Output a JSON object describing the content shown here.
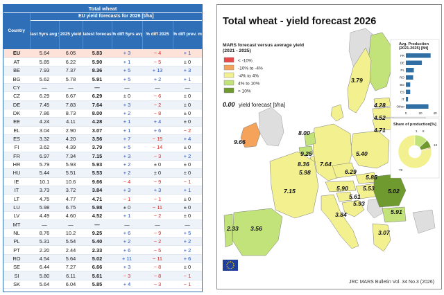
{
  "table": {
    "title": "Total wheat",
    "subtitle": "EU yield forecasts for 2026 [t/ha]",
    "columns": [
      "Country",
      "last 5yrs avg yield",
      "2025 yield",
      "latest forecast",
      "% diff 5yrs avg",
      "% diff 2025",
      "% diff prev. month"
    ],
    "rows": [
      {
        "c": "EU",
        "a": "5.64",
        "y": "6.05",
        "f": "5.83",
        "d5": "+ 3",
        "d25": "− 4",
        "dp": "+ 1"
      },
      {
        "c": "AT",
        "a": "5.85",
        "y": "6.22",
        "f": "5.90",
        "d5": "+ 1",
        "d25": "− 5",
        "dp": "± 0"
      },
      {
        "c": "BE",
        "a": "7.93",
        "y": "7.37",
        "f": "8.36",
        "d5": "+ 5",
        "d25": "+ 13",
        "dp": "+ 3"
      },
      {
        "c": "BG",
        "a": "5.62",
        "y": "5.78",
        "f": "5.91",
        "d5": "+ 5",
        "d25": "+ 2",
        "dp": "+ 1"
      },
      {
        "c": "CY",
        "a": "—",
        "y": "—",
        "f": "—",
        "d5": "—",
        "d25": "—",
        "dp": "—"
      },
      {
        "c": "CZ",
        "a": "6.29",
        "y": "6.67",
        "f": "6.29",
        "d5": "± 0",
        "d25": "− 6",
        "dp": "± 0"
      },
      {
        "c": "DE",
        "a": "7.45",
        "y": "7.83",
        "f": "7.64",
        "d5": "+ 3",
        "d25": "− 2",
        "dp": "± 0"
      },
      {
        "c": "DK",
        "a": "7.86",
        "y": "8.73",
        "f": "8.00",
        "d5": "+ 2",
        "d25": "− 8",
        "dp": "± 0"
      },
      {
        "c": "EE",
        "a": "4.24",
        "y": "4.11",
        "f": "4.28",
        "d5": "+ 1",
        "d25": "+ 4",
        "dp": "± 0"
      },
      {
        "c": "EL",
        "a": "3.04",
        "y": "2.90",
        "f": "3.07",
        "d5": "+ 1",
        "d25": "+ 6",
        "dp": "− 2"
      },
      {
        "c": "ES",
        "a": "3.32",
        "y": "4.20",
        "f": "3.56",
        "d5": "+ 7",
        "d25": "− 15",
        "dp": "+ 4"
      },
      {
        "c": "FI",
        "a": "3.62",
        "y": "4.39",
        "f": "3.79",
        "d5": "+ 5",
        "d25": "− 14",
        "dp": "± 0"
      },
      {
        "c": "FR",
        "a": "6.97",
        "y": "7.34",
        "f": "7.15",
        "d5": "+ 3",
        "d25": "− 3",
        "dp": "+ 2"
      },
      {
        "c": "HR",
        "a": "5.79",
        "y": "5.93",
        "f": "5.93",
        "d5": "+ 2",
        "d25": "± 0",
        "dp": "± 0"
      },
      {
        "c": "HU",
        "a": "5.44",
        "y": "5.51",
        "f": "5.53",
        "d5": "+ 2",
        "d25": "± 0",
        "dp": "± 0"
      },
      {
        "c": "IE",
        "a": "10.1",
        "y": "10.6",
        "f": "9.66",
        "d5": "− 4",
        "d25": "− 9",
        "dp": "− 1"
      },
      {
        "c": "IT",
        "a": "3.73",
        "y": "3.72",
        "f": "3.84",
        "d5": "+ 3",
        "d25": "+ 3",
        "dp": "+ 1"
      },
      {
        "c": "LT",
        "a": "4.75",
        "y": "4.77",
        "f": "4.71",
        "d5": "− 1",
        "d25": "− 1",
        "dp": "± 0"
      },
      {
        "c": "LU",
        "a": "5.98",
        "y": "6.75",
        "f": "5.98",
        "d5": "± 0",
        "d25": "− 11",
        "dp": "± 0"
      },
      {
        "c": "LV",
        "a": "4.49",
        "y": "4.60",
        "f": "4.52",
        "d5": "+ 1",
        "d25": "− 2",
        "dp": "± 0"
      },
      {
        "c": "MT",
        "a": "—",
        "y": "—",
        "f": "—",
        "d5": "—",
        "d25": "—",
        "dp": "—"
      },
      {
        "c": "NL",
        "a": "8.76",
        "y": "10.2",
        "f": "9.25",
        "d5": "+ 6",
        "d25": "− 9",
        "dp": "+ 5"
      },
      {
        "c": "PL",
        "a": "5.31",
        "y": "5.54",
        "f": "5.40",
        "d5": "+ 2",
        "d25": "− 2",
        "dp": "+ 2"
      },
      {
        "c": "PT",
        "a": "2.20",
        "y": "2.44",
        "f": "2.33",
        "d5": "+ 6",
        "d25": "− 5",
        "dp": "+ 2"
      },
      {
        "c": "RO",
        "a": "4.54",
        "y": "5.64",
        "f": "5.02",
        "d5": "+ 11",
        "d25": "− 11",
        "dp": "+ 6"
      },
      {
        "c": "SE",
        "a": "6.44",
        "y": "7.27",
        "f": "6.66",
        "d5": "+ 3",
        "d25": "− 8",
        "dp": "± 0"
      },
      {
        "c": "SI",
        "a": "5.80",
        "y": "6.11",
        "f": "5.61",
        "d5": "− 3",
        "d25": "− 8",
        "dp": "− 1"
      },
      {
        "c": "SK",
        "a": "5.64",
        "y": "6.04",
        "f": "5.85",
        "d5": "+ 4",
        "d25": "− 3",
        "dp": "− 1"
      }
    ]
  },
  "map": {
    "title": "Total wheat - yield forecast 2026",
    "legend_title": "MARS forecast versus average yield (2021 - 2025)",
    "legend": [
      {
        "label": "< -10%",
        "color": "#e8494a"
      },
      {
        "label": "-10% to -4%",
        "color": "#f5a25a"
      },
      {
        "label": "-4% to 4%",
        "color": "#f3f08f"
      },
      {
        "label": "4% to 10%",
        "color": "#c2e37a"
      },
      {
        "label": "> 10%",
        "color": "#6e9a2f"
      }
    ],
    "example_value": "0.00",
    "example_label": "yield forecast [t/ha]",
    "labels": [
      "9.66",
      "8.00",
      "3.79",
      "4.28",
      "4.52",
      "4.71",
      "9.25",
      "8.36",
      "5.98",
      "7.64",
      "5.40",
      "6.29",
      "7.15",
      "5.90",
      "5.85",
      "5.53",
      "5.61",
      "5.93",
      "5.02",
      "5.91",
      "3.84",
      "3.07",
      "2.33",
      "3.56"
    ],
    "bulletin": "JRC MARS Bulletin Vol. 34 No.3 (2026)"
  },
  "production_chart": {
    "title": "Avg. Production (2021-2025) [Mt]",
    "categories": [
      "FR",
      "DE",
      "PL",
      "RO",
      "BG",
      "ES",
      "IT",
      "Other"
    ],
    "values": [
      34,
      22,
      11,
      10,
      6,
      6,
      3,
      31
    ],
    "ticks": [
      "0",
      "20",
      "40"
    ],
    "xlim": [
      0,
      40
    ]
  },
  "share_pie": {
    "title": "Share of production[%]",
    "values": [
      78,
      13,
      8,
      1
    ],
    "labels": [
      "78",
      "13",
      "8",
      "1"
    ],
    "colors": [
      "#f3f08f",
      "#c2e37a",
      "#6e9a2f",
      "#f5a25a"
    ]
  },
  "colors": {
    "header_blue": "#2f6fb8",
    "eu_row": "#fde2da",
    "positive": "#1d4fc0",
    "negative": "#e0221c",
    "sea": "#ffffff",
    "nonEU": "#dedede"
  }
}
